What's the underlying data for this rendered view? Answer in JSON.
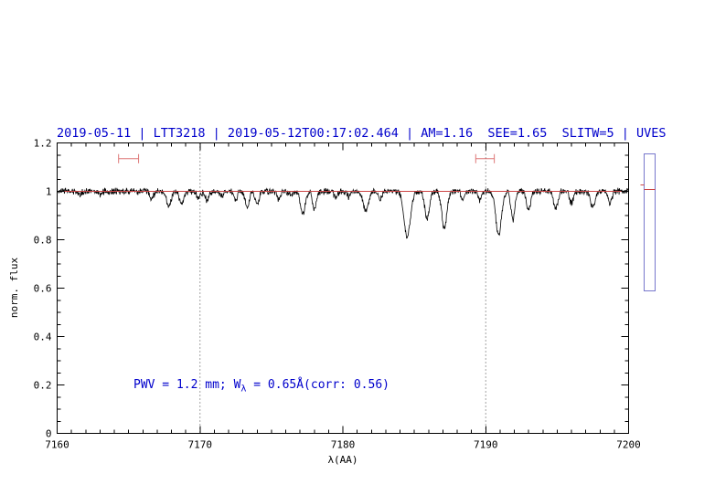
{
  "chart_data": {
    "type": "line",
    "title": "2019-05-11 | LTT3218 | 2019-05-12T00:17:02.464 | AM=1.16  SEE=1.65  SLITW=5 | UVES",
    "title_color": "#0000cc",
    "xlabel": "λ(AA)",
    "ylabel": "norm. flux",
    "xlim": [
      7160,
      7200
    ],
    "ylim": [
      0,
      1.2
    ],
    "xticks": [
      7160,
      7170,
      7180,
      7190,
      7200
    ],
    "xtick_labels": [
      "7160",
      "7170",
      "7180",
      "7190",
      "7200"
    ],
    "yticks": [
      0,
      0.2,
      0.4,
      0.6,
      0.8,
      1,
      1.2
    ],
    "ytick_labels": [
      "0",
      "0.2",
      "0.4",
      "0.6",
      "0.8",
      "1",
      "1.2"
    ],
    "x_minor_step": 1,
    "y_minor_step": 0.05,
    "grid": false,
    "legend": "none",
    "dotted_vlines": [
      7170,
      7190
    ],
    "continuum": {
      "y": 1.0,
      "color": "#cc4444"
    },
    "series": [
      {
        "name": "normalized spectrum",
        "color": "#000000",
        "noise_amp": 0.016,
        "samples": 1500,
        "absorption_features": [
          [
            7161.6,
            0.012,
            0.1
          ],
          [
            7163.0,
            0.015,
            0.1
          ],
          [
            7166.6,
            0.035,
            0.14
          ],
          [
            7167.8,
            0.06,
            0.16
          ],
          [
            7168.7,
            0.055,
            0.14
          ],
          [
            7169.9,
            0.03,
            0.12
          ],
          [
            7170.5,
            0.04,
            0.13
          ],
          [
            7171.5,
            0.02,
            0.1
          ],
          [
            7172.5,
            0.035,
            0.12
          ],
          [
            7173.3,
            0.065,
            0.14
          ],
          [
            7174.0,
            0.055,
            0.13
          ],
          [
            7175.5,
            0.035,
            0.12
          ],
          [
            7176.4,
            0.02,
            0.1
          ],
          [
            7177.2,
            0.095,
            0.16
          ],
          [
            7178.0,
            0.075,
            0.14
          ],
          [
            7179.5,
            0.028,
            0.11
          ],
          [
            7180.4,
            0.022,
            0.1
          ],
          [
            7181.6,
            0.085,
            0.18
          ],
          [
            7182.6,
            0.03,
            0.11
          ],
          [
            7184.5,
            0.19,
            0.22
          ],
          [
            7185.9,
            0.115,
            0.16
          ],
          [
            7187.1,
            0.15,
            0.18
          ],
          [
            7188.4,
            0.035,
            0.11
          ],
          [
            7189.6,
            0.04,
            0.11
          ],
          [
            7190.9,
            0.18,
            0.2
          ],
          [
            7191.9,
            0.115,
            0.14
          ],
          [
            7193.0,
            0.08,
            0.14
          ],
          [
            7194.9,
            0.065,
            0.16
          ],
          [
            7196.0,
            0.05,
            0.13
          ],
          [
            7197.5,
            0.065,
            0.16
          ],
          [
            7198.7,
            0.05,
            0.13
          ]
        ]
      }
    ],
    "interval_markers": {
      "color": "#dd7777",
      "y": 1.135,
      "intervals": [
        [
          7164.3,
          7165.7
        ],
        [
          7189.3,
          7190.6
        ]
      ]
    },
    "annotation": {
      "color": "#0000cc",
      "prefix": "PWV = 1.2 mm; W",
      "sub": "λ",
      "suffix": " = 0.65Å(corr: 0.56)",
      "x": 7165.4,
      "y": 0.2
    },
    "side_indicator": {
      "border_color": "#7777cc",
      "marker_color": "#cc4444"
    }
  }
}
